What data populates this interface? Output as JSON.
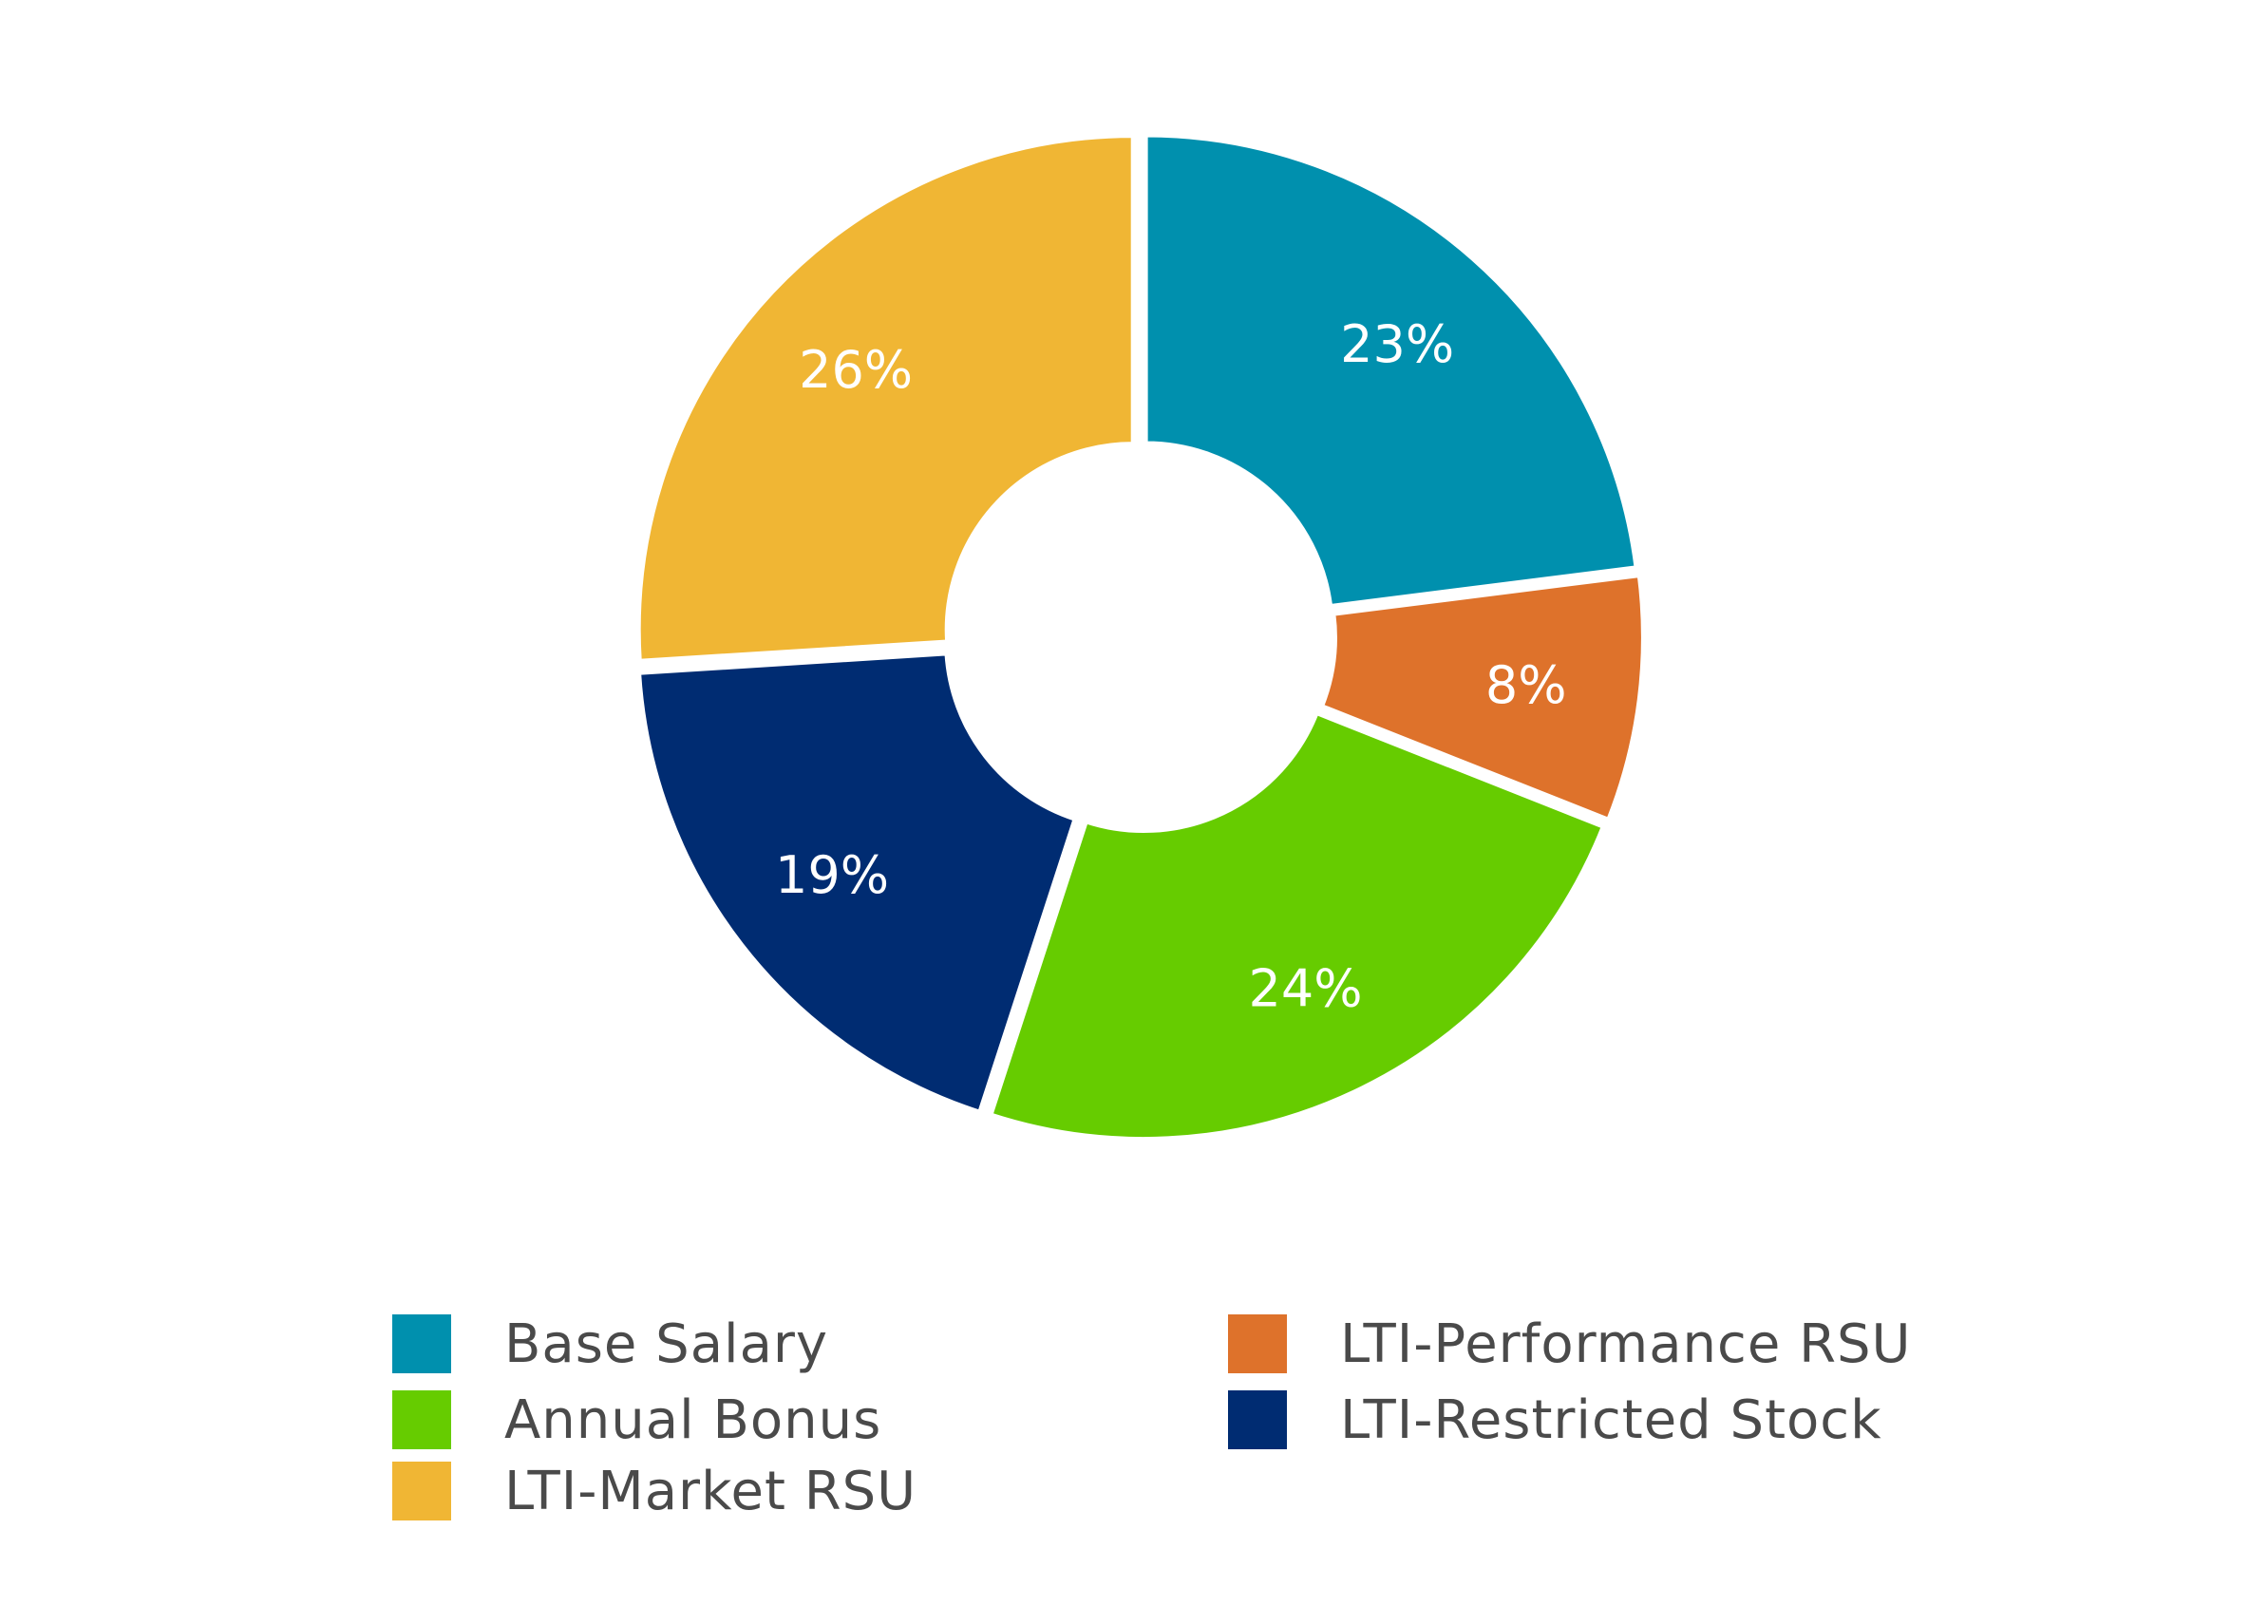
{
  "chart_data": {
    "type": "pie",
    "title": "",
    "categories": [
      "Base Salary",
      "LTI-Performance RSU",
      "Annual Bonus",
      "LTI-Restricted Stock",
      "LTI-Market RSU"
    ],
    "values": [
      23,
      8,
      24,
      19,
      26
    ],
    "value_labels": [
      "23%",
      "8%",
      "24%",
      "19%",
      "26%"
    ],
    "unit": "%",
    "colors": [
      "#0090AE",
      "#DE722B",
      "#66CC00",
      "#002C72",
      "#F0B634"
    ],
    "donut": true,
    "exploded": true,
    "start": "12 o'clock",
    "direction": "clockwise",
    "legend_placement": "bottom",
    "legend": [
      {
        "label": "Base Salary",
        "color": "#0090AE"
      },
      {
        "label": "LTI-Performance RSU",
        "color": "#DE722B"
      },
      {
        "label": "Annual Bonus",
        "color": "#66CC00"
      },
      {
        "label": "LTI-Restricted Stock",
        "color": "#002C72"
      },
      {
        "label": "LTI-Market RSU",
        "color": "#F0B634"
      }
    ]
  }
}
